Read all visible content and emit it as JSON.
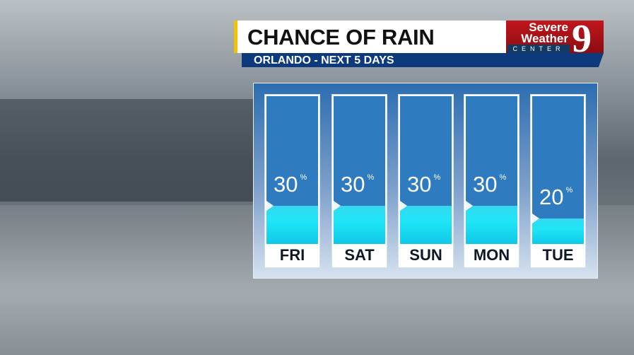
{
  "header": {
    "title": "CHANCE OF RAIN",
    "subtitle": "ORLANDO - NEXT 5 DAYS"
  },
  "logo": {
    "line1": "Severe",
    "line2": "Weather",
    "line3": "CENTER",
    "number": "9"
  },
  "colors": {
    "accent_yellow": "#f2c200",
    "banner_blue": "#0d3a7c",
    "bar_blue": "#2e7bc0",
    "water_cyan": "#1fe6f7",
    "logo_red": "#c0161c"
  },
  "chart_data": {
    "type": "bar",
    "title": "CHANCE OF RAIN",
    "subtitle": "ORLANDO - NEXT 5 DAYS",
    "categories": [
      "FRI",
      "SAT",
      "SUN",
      "MON",
      "TUE"
    ],
    "values": [
      30,
      30,
      30,
      30,
      20
    ],
    "unit": "%",
    "labels": [
      "30",
      "30",
      "30",
      "30",
      "20"
    ]
  }
}
